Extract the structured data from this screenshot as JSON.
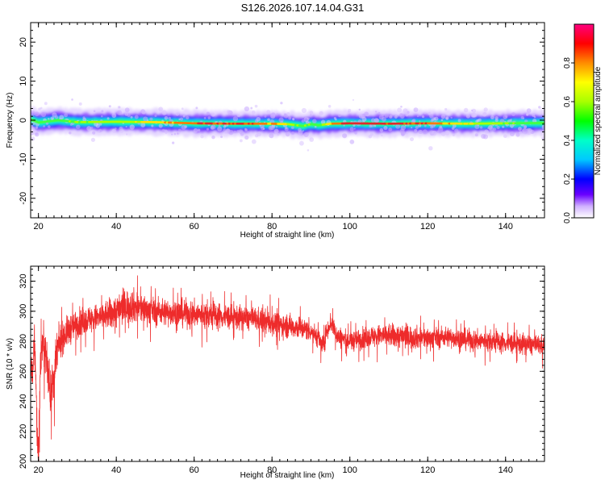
{
  "figure_title": "S126.2026.107.14.04.G31",
  "colors": {
    "snr_line": "#ee2b2b",
    "track_center": "#e02a2a"
  },
  "chart_data": [
    {
      "type": "heatmap",
      "xlabel": "Height of straight line (km)",
      "ylabel": "Frequency (Hz)",
      "xlim": [
        18,
        150
      ],
      "ylim": [
        -25,
        25
      ],
      "xticks": [
        20,
        40,
        60,
        80,
        100,
        120,
        140
      ],
      "yticks": [
        -20,
        -10,
        0,
        10,
        20
      ],
      "grid": false,
      "colorbar": {
        "label": "Normalized spectral amplitude",
        "range": [
          0,
          1
        ],
        "ticks": [
          0.0,
          0.2,
          0.4,
          0.6,
          0.8
        ]
      },
      "ridge": {
        "x": [
          18,
          20,
          25,
          30,
          40,
          50,
          60,
          70,
          80,
          84,
          88,
          90,
          92,
          95,
          100,
          110,
          120,
          130,
          140,
          150
        ],
        "freq": [
          0.2,
          -0.6,
          0.0,
          -0.5,
          -0.4,
          -0.5,
          -0.8,
          -0.9,
          -0.9,
          -1.0,
          -1.5,
          -1.0,
          -1.3,
          -0.9,
          -0.8,
          -0.9,
          -0.8,
          -0.9,
          -0.8,
          -0.7
        ],
        "amplitude": [
          0.4,
          0.35,
          0.45,
          0.5,
          0.55,
          0.65,
          0.8,
          0.85,
          0.75,
          0.6,
          0.45,
          0.5,
          0.45,
          0.7,
          0.9,
          0.85,
          0.8,
          0.6,
          0.5,
          0.4
        ]
      }
    },
    {
      "type": "line",
      "xlabel": "Height of straight line (km)",
      "ylabel": "SNR (10 * v/v)",
      "xlim": [
        18,
        150
      ],
      "ylim": [
        200,
        330
      ],
      "xticks": [
        20,
        40,
        60,
        80,
        100,
        120,
        140
      ],
      "yticks": [
        200,
        220,
        240,
        260,
        280,
        300,
        320
      ],
      "grid": false,
      "series": [
        {
          "color": "#ee2b2b",
          "x": [
            18,
            18.5,
            19,
            19.5,
            20,
            20.5,
            21,
            22,
            23,
            24,
            25,
            26,
            27,
            28,
            30,
            32,
            34,
            36,
            38,
            40,
            42,
            44,
            46,
            48,
            50,
            55,
            60,
            65,
            70,
            75,
            80,
            85,
            90,
            92,
            93,
            94,
            95,
            97,
            100,
            105,
            110,
            115,
            120,
            125,
            130,
            135,
            140,
            145,
            150
          ],
          "y": [
            272,
            252,
            285,
            235,
            205,
            262,
            280,
            270,
            245,
            255,
            275,
            282,
            285,
            288,
            292,
            294,
            295,
            296,
            298,
            300,
            303,
            304,
            302,
            301,
            300,
            299,
            298,
            297,
            296,
            295,
            292,
            290,
            287,
            282,
            276,
            286,
            293,
            283,
            280,
            283,
            284,
            283,
            282,
            283,
            281,
            280,
            279,
            278,
            277
          ],
          "spread": [
            10,
            12,
            12,
            18,
            15,
            12,
            12,
            12,
            12,
            12,
            12,
            9,
            9,
            9,
            8,
            8,
            8,
            8,
            9,
            10,
            10,
            10,
            9,
            8,
            8,
            8,
            8,
            8,
            7,
            7,
            7,
            7,
            6,
            6,
            6,
            6,
            6,
            6,
            6,
            6,
            7,
            7,
            6,
            6,
            6,
            6,
            6,
            6,
            6
          ]
        }
      ]
    }
  ]
}
